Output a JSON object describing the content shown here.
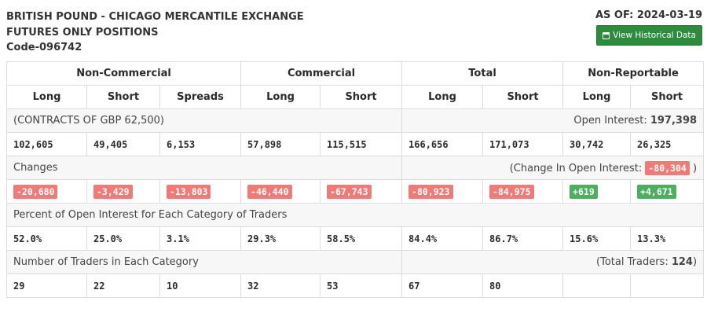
{
  "header": {
    "title_line1": "BRITISH POUND - CHICAGO MERCANTILE EXCHANGE",
    "title_line2": "FUTURES ONLY POSITIONS",
    "code": "Code-096742",
    "as_of": "AS OF: 2024-03-19",
    "history_button": "View Historical Data"
  },
  "table": {
    "groups": [
      "Non-Commercial",
      "Commercial",
      "Total",
      "Non-Reportable"
    ],
    "subheaders": [
      "Long",
      "Short",
      "Spreads",
      "Long",
      "Short",
      "Long",
      "Short",
      "Long",
      "Short"
    ],
    "contracts_label": "(CONTRACTS OF GBP 62,500)",
    "open_interest_label": "Open Interest:",
    "open_interest_value": "197,398",
    "positions": [
      "102,605",
      "49,405",
      "6,153",
      "57,898",
      "115,515",
      "166,656",
      "171,073",
      "30,742",
      "26,325"
    ],
    "changes_label": "Changes",
    "change_oi_prefix": "(Change In Open Interest:",
    "change_oi_value": "-80,304",
    "change_oi_suffix": ")",
    "changes": [
      "-20,680",
      "-3,429",
      "-13,803",
      "-46,440",
      "-67,743",
      "-80,923",
      "-84,975",
      "+619",
      "+4,671"
    ],
    "percent_label": "Percent of Open Interest for Each Category of Traders",
    "percent": [
      "52.0%",
      "25.0%",
      "3.1%",
      "29.3%",
      "58.5%",
      "84.4%",
      "86.7%",
      "15.6%",
      "13.3%"
    ],
    "traders_label": "Number of Traders in Each Category",
    "total_traders_prefix": "(Total Traders:",
    "total_traders_value": "124",
    "total_traders_suffix": ")",
    "traders": [
      "29",
      "22",
      "10",
      "32",
      "53",
      "67",
      "80",
      "",
      ""
    ]
  },
  "colors": {
    "negative": "#ef7a78",
    "positive": "#4cae5e",
    "button": "#2e8b3d"
  }
}
